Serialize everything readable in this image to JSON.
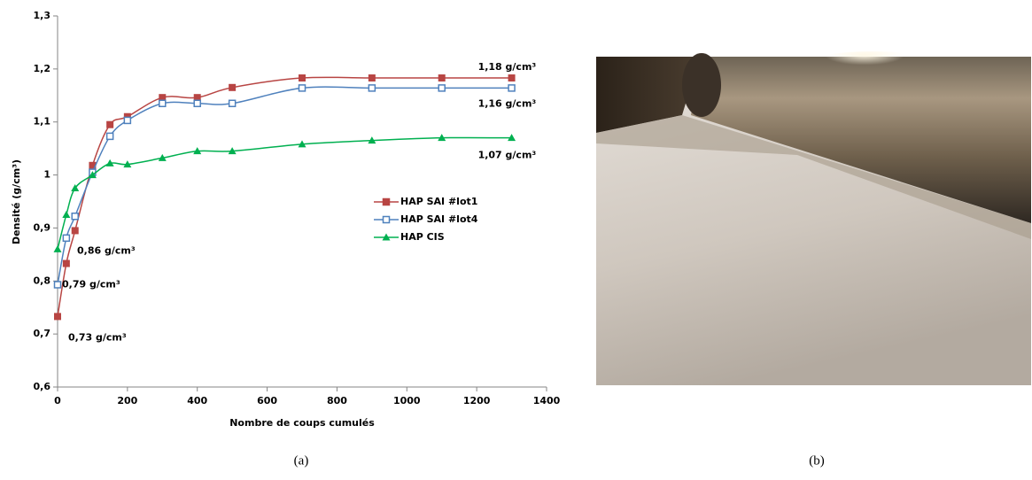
{
  "chart_data": {
    "type": "line",
    "xlabel": "Nombre de coups cumulés",
    "ylabel": "Densité (g/cm³)",
    "x": [
      0,
      25,
      50,
      100,
      150,
      200,
      300,
      400,
      500,
      700,
      900,
      1100,
      1300
    ],
    "series": [
      {
        "name": "HAP SAI #lot1",
        "color": "#b84543",
        "marker": "square",
        "values": [
          0.733,
          0.833,
          0.895,
          1.018,
          1.095,
          1.11,
          1.146,
          1.146,
          1.165,
          1.183,
          1.183,
          1.183,
          1.183
        ],
        "start_label": "0,73 g/cm³",
        "end_label": "1,18 g/cm³"
      },
      {
        "name": "HAP SAI #lot4",
        "color": "#4f81bd",
        "marker": "open-square",
        "values": [
          0.793,
          0.881,
          0.922,
          1.005,
          1.073,
          1.103,
          1.135,
          1.135,
          1.135,
          1.164,
          1.164,
          1.164,
          1.164
        ],
        "start_label": "0,79 g/cm³",
        "end_label": "1,16 g/cm³"
      },
      {
        "name": "HAP CIS",
        "color": "#00b050",
        "marker": "triangle",
        "values": [
          0.86,
          0.925,
          0.975,
          1.0,
          1.022,
          1.02,
          1.032,
          1.045,
          1.045,
          1.058,
          1.065,
          1.07,
          1.07
        ],
        "start_label": "0,86 g/cm³",
        "end_label": "1,07 g/cm³"
      }
    ],
    "xlim": [
      0,
      1400
    ],
    "xticks": [
      0,
      200,
      400,
      600,
      800,
      1000,
      1200,
      1400
    ],
    "ylim": [
      0.6,
      1.3
    ],
    "yticks": [
      {
        "value": 0.6,
        "label": "0,6"
      },
      {
        "value": 0.7,
        "label": "0,7"
      },
      {
        "value": 0.8,
        "label": "0,8"
      },
      {
        "value": 0.9,
        "label": "0,9"
      },
      1,
      {
        "value": 1.1,
        "label": "1,1"
      },
      {
        "value": 1.2,
        "label": "1,2"
      },
      {
        "value": 1.3,
        "label": "1,3"
      }
    ],
    "grid": false,
    "legend": "right"
  },
  "captions": [
    "(a)",
    "(b)"
  ]
}
